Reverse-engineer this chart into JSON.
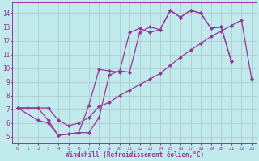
{
  "xlabel": "Windchill (Refroidissement éolien,°C)",
  "background_color": "#c0eaec",
  "grid_color": "#b0cccc",
  "line_color": "#993399",
  "xlim": [
    -0.5,
    23.5
  ],
  "ylim": [
    4.5,
    14.8
  ],
  "xticks": [
    0,
    1,
    2,
    3,
    4,
    5,
    6,
    7,
    8,
    9,
    10,
    11,
    12,
    13,
    14,
    15,
    16,
    17,
    18,
    19,
    20,
    21,
    22,
    23
  ],
  "yticks": [
    5,
    6,
    7,
    8,
    9,
    10,
    11,
    12,
    13,
    14
  ],
  "line1_x": [
    0,
    1,
    2,
    3,
    4,
    5,
    6,
    7,
    8,
    9,
    10,
    11,
    12,
    13,
    14,
    15,
    16,
    17,
    18,
    19,
    20,
    21,
    22,
    23
  ],
  "line1_y": [
    7.1,
    7.1,
    7.1,
    7.1,
    6.2,
    5.8,
    6.0,
    6.4,
    7.2,
    7.5,
    8.0,
    8.4,
    8.8,
    9.2,
    9.6,
    10.2,
    10.8,
    11.3,
    11.8,
    12.3,
    12.7,
    13.1,
    13.5,
    9.2
  ],
  "line2_x": [
    0,
    2,
    3,
    4,
    5,
    6,
    7,
    8,
    9,
    10,
    11,
    12,
    13,
    14,
    15,
    16,
    17,
    18,
    19,
    20,
    21
  ],
  "line2_y": [
    7.1,
    6.2,
    6.0,
    5.1,
    5.2,
    5.3,
    7.3,
    9.9,
    9.8,
    9.7,
    12.6,
    12.9,
    12.6,
    12.8,
    14.2,
    13.7,
    14.2,
    14.0,
    12.9,
    13.0,
    10.5
  ],
  "line3_x": [
    0,
    1,
    2,
    3,
    4,
    5,
    6,
    7,
    8,
    9,
    10,
    11,
    12,
    13,
    14,
    15,
    16,
    17,
    18,
    19,
    20,
    21
  ],
  "line3_y": [
    7.1,
    7.1,
    7.1,
    6.2,
    5.1,
    5.2,
    5.3,
    5.3,
    6.4,
    9.5,
    9.8,
    9.7,
    12.6,
    13.0,
    12.8,
    14.2,
    13.7,
    14.2,
    14.0,
    12.9,
    13.0,
    10.5
  ]
}
